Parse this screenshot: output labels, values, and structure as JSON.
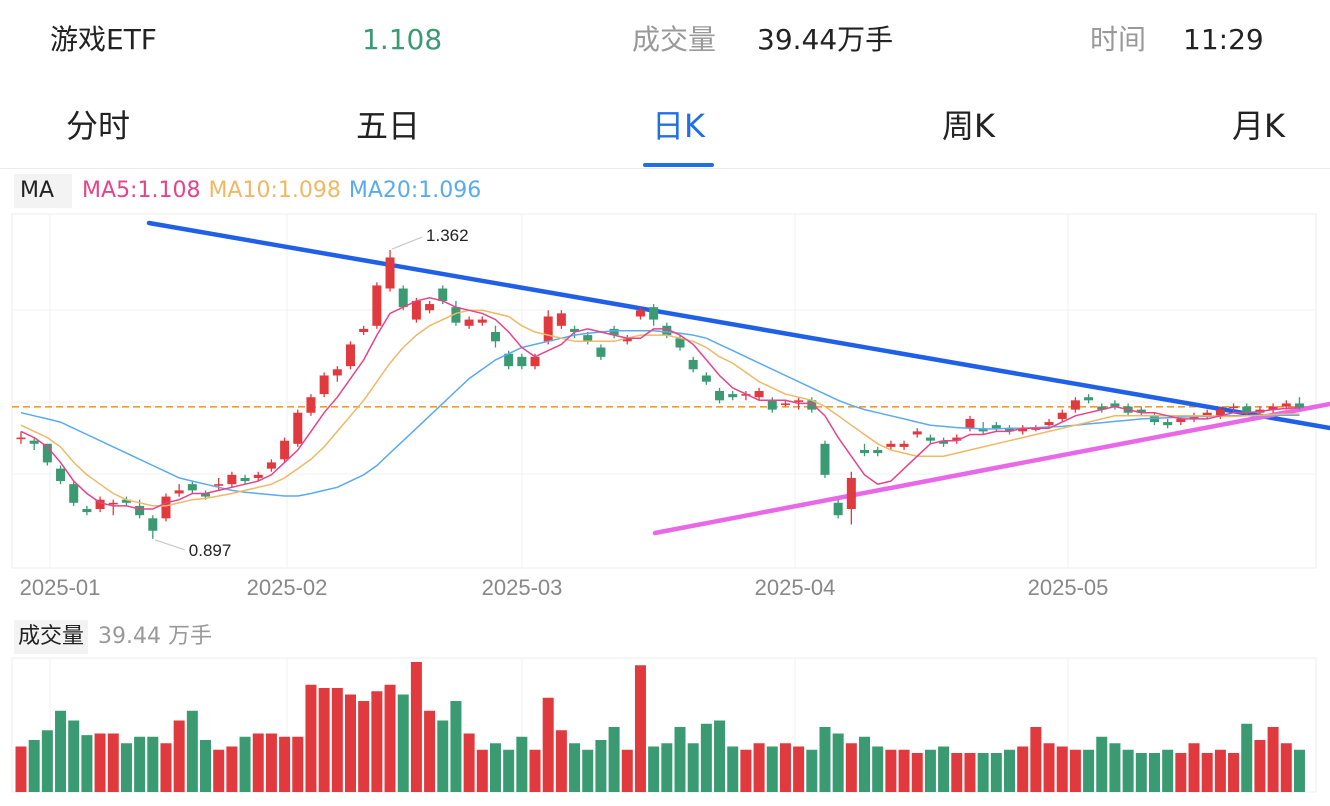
{
  "header": {
    "name": "游戏ETF",
    "price": "1.108",
    "volume_label": "成交量",
    "volume_value": "39.44万手",
    "time_label": "时间",
    "time_value": "11:29"
  },
  "tabs": [
    {
      "label": "分时",
      "active": false
    },
    {
      "label": "五日",
      "active": false
    },
    {
      "label": "日K",
      "active": true
    },
    {
      "label": "周K",
      "active": false
    },
    {
      "label": "月K",
      "active": false
    }
  ],
  "ma_legend": {
    "tag": "MA",
    "ma5": "MA5:1.108",
    "ma10": "MA10:1.098",
    "ma20": "MA20:1.096"
  },
  "volume_legend": {
    "tag": "成交量",
    "value": "39.44 万手"
  },
  "colors": {
    "up": "#e0393e",
    "down": "#3a9b73",
    "ma5": "#e5438a",
    "ma10": "#f0b865",
    "ma20": "#5aaaf0",
    "active_tab": "#1f6fe6",
    "resistance_line": "#2060e8",
    "support_line": "#e868e8",
    "last_price_line": "#f09a30"
  },
  "chart_data": {
    "type": "candlestick",
    "title": "",
    "x_ticks": [
      "2025-01",
      "2025-02",
      "2025-03",
      "2025-04",
      "2025-05"
    ],
    "ylim": [
      0.85,
      1.42
    ],
    "grid": true,
    "annotations": [
      {
        "text": "1.362",
        "kind": "max"
      },
      {
        "text": "0.897",
        "kind": "min"
      }
    ],
    "last_price": 1.108,
    "candles": [
      [
        1.06,
        1.06,
        1.07,
        1.05
      ],
      [
        1.055,
        1.05,
        1.06,
        1.04
      ],
      [
        1.05,
        1.02,
        1.05,
        1.015
      ],
      [
        1.01,
        0.99,
        1.015,
        0.985
      ],
      [
        0.985,
        0.955,
        0.99,
        0.95
      ],
      [
        0.945,
        0.94,
        0.95,
        0.935
      ],
      [
        0.945,
        0.96,
        0.965,
        0.94
      ],
      [
        0.955,
        0.955,
        0.96,
        0.935
      ],
      [
        0.96,
        0.955,
        0.965,
        0.95
      ],
      [
        0.95,
        0.935,
        0.96,
        0.93
      ],
      [
        0.93,
        0.91,
        0.935,
        0.897
      ],
      [
        0.93,
        0.965,
        0.97,
        0.925
      ],
      [
        0.97,
        0.975,
        0.985,
        0.965
      ],
      [
        0.985,
        0.975,
        0.99,
        0.97
      ],
      [
        0.97,
        0.965,
        0.975,
        0.96
      ],
      [
        0.985,
        0.985,
        0.995,
        0.975
      ],
      [
        0.985,
        1.0,
        1.005,
        0.98
      ],
      [
        0.995,
        0.99,
        1.0,
        0.985
      ],
      [
        0.995,
        1.0,
        1.005,
        0.99
      ],
      [
        1.01,
        1.02,
        1.025,
        1.005
      ],
      [
        1.025,
        1.055,
        1.06,
        1.02
      ],
      [
        1.05,
        1.1,
        1.105,
        1.045
      ],
      [
        1.1,
        1.125,
        1.13,
        1.095
      ],
      [
        1.13,
        1.16,
        1.165,
        1.125
      ],
      [
        1.16,
        1.17,
        1.175,
        1.15
      ],
      [
        1.175,
        1.21,
        1.215,
        1.17
      ],
      [
        1.23,
        1.235,
        1.24,
        1.225
      ],
      [
        1.24,
        1.305,
        1.31,
        1.235
      ],
      [
        1.3,
        1.35,
        1.362,
        1.295
      ],
      [
        1.3,
        1.27,
        1.305,
        1.265
      ],
      [
        1.25,
        1.28,
        1.285,
        1.245
      ],
      [
        1.265,
        1.275,
        1.28,
        1.26
      ],
      [
        1.3,
        1.28,
        1.305,
        1.275
      ],
      [
        1.27,
        1.245,
        1.28,
        1.24
      ],
      [
        1.24,
        1.25,
        1.255,
        1.235
      ],
      [
        1.245,
        1.25,
        1.255,
        1.24
      ],
      [
        1.23,
        1.215,
        1.24,
        1.205
      ],
      [
        1.195,
        1.175,
        1.2,
        1.17
      ],
      [
        1.19,
        1.175,
        1.195,
        1.17
      ],
      [
        1.175,
        1.19,
        1.195,
        1.17
      ],
      [
        1.215,
        1.255,
        1.265,
        1.21
      ],
      [
        1.24,
        1.26,
        1.265,
        1.235
      ],
      [
        1.235,
        1.23,
        1.24,
        1.22
      ],
      [
        1.225,
        1.215,
        1.23,
        1.21
      ],
      [
        1.205,
        1.19,
        1.21,
        1.185
      ],
      [
        1.235,
        1.225,
        1.24,
        1.22
      ],
      [
        1.215,
        1.22,
        1.225,
        1.21
      ],
      [
        1.255,
        1.265,
        1.27,
        1.25
      ],
      [
        1.27,
        1.25,
        1.275,
        1.24
      ],
      [
        1.24,
        1.225,
        1.245,
        1.22
      ],
      [
        1.22,
        1.205,
        1.225,
        1.2
      ],
      [
        1.185,
        1.17,
        1.19,
        1.165
      ],
      [
        1.16,
        1.15,
        1.165,
        1.145
      ],
      [
        1.135,
        1.12,
        1.14,
        1.115
      ],
      [
        1.13,
        1.125,
        1.135,
        1.12
      ],
      [
        1.13,
        1.13,
        1.135,
        1.12
      ],
      [
        1.125,
        1.135,
        1.14,
        1.12
      ],
      [
        1.12,
        1.105,
        1.125,
        1.1
      ],
      [
        1.115,
        1.115,
        1.12,
        1.11
      ],
      [
        1.12,
        1.12,
        1.125,
        1.105
      ],
      [
        1.12,
        1.105,
        1.125,
        1.1
      ],
      [
        1.05,
        1.0,
        1.055,
        0.995
      ],
      [
        0.955,
        0.935,
        0.96,
        0.93
      ],
      [
        0.945,
        0.995,
        1.005,
        0.92
      ],
      [
        1.04,
        1.035,
        1.05,
        1.03
      ],
      [
        1.04,
        1.035,
        1.045,
        1.03
      ],
      [
        1.045,
        1.05,
        1.055,
        1.04
      ],
      [
        1.045,
        1.05,
        1.055,
        1.04
      ],
      [
        1.065,
        1.07,
        1.075,
        1.06
      ],
      [
        1.06,
        1.055,
        1.065,
        1.05
      ],
      [
        1.055,
        1.05,
        1.06,
        1.045
      ],
      [
        1.055,
        1.06,
        1.065,
        1.05
      ],
      [
        1.075,
        1.09,
        1.095,
        1.07
      ],
      [
        1.075,
        1.07,
        1.085,
        1.065
      ],
      [
        1.08,
        1.075,
        1.085,
        1.07
      ],
      [
        1.075,
        1.07,
        1.08,
        1.065
      ],
      [
        1.07,
        1.075,
        1.08,
        1.065
      ],
      [
        1.075,
        1.075,
        1.08,
        1.07
      ],
      [
        1.08,
        1.085,
        1.09,
        1.075
      ],
      [
        1.09,
        1.1,
        1.105,
        1.085
      ],
      [
        1.105,
        1.12,
        1.125,
        1.1
      ],
      [
        1.125,
        1.12,
        1.13,
        1.115
      ],
      [
        1.11,
        1.105,
        1.115,
        1.1
      ],
      [
        1.115,
        1.11,
        1.12,
        1.105
      ],
      [
        1.11,
        1.1,
        1.115,
        1.095
      ],
      [
        1.105,
        1.1,
        1.11,
        1.095
      ],
      [
        1.095,
        1.085,
        1.1,
        1.08
      ],
      [
        1.085,
        1.08,
        1.09,
        1.075
      ],
      [
        1.085,
        1.09,
        1.095,
        1.08
      ],
      [
        1.09,
        1.095,
        1.1,
        1.085
      ],
      [
        1.095,
        1.1,
        1.105,
        1.09
      ],
      [
        1.095,
        1.105,
        1.11,
        1.09
      ],
      [
        1.11,
        1.11,
        1.115,
        1.1
      ],
      [
        1.11,
        1.1,
        1.115,
        1.095
      ],
      [
        1.1,
        1.105,
        1.11,
        1.095
      ],
      [
        1.105,
        1.11,
        1.115,
        1.1
      ],
      [
        1.11,
        1.115,
        1.12,
        1.105
      ],
      [
        1.115,
        1.108,
        1.125,
        1.105
      ]
    ],
    "ma5": [
      1.07,
      1.06,
      1.045,
      1.02,
      0.99,
      0.97,
      0.955,
      0.95,
      0.95,
      0.945,
      0.945,
      0.955,
      0.96,
      0.97,
      0.97,
      0.975,
      0.98,
      0.985,
      0.99,
      1.0,
      1.02,
      1.04,
      1.07,
      1.1,
      1.125,
      1.155,
      1.185,
      1.225,
      1.26,
      1.27,
      1.28,
      1.285,
      1.28,
      1.27,
      1.265,
      1.26,
      1.25,
      1.23,
      1.205,
      1.19,
      1.2,
      1.21,
      1.23,
      1.235,
      1.23,
      1.225,
      1.22,
      1.22,
      1.235,
      1.235,
      1.225,
      1.21,
      1.185,
      1.16,
      1.14,
      1.13,
      1.12,
      1.12,
      1.12,
      1.115,
      1.115,
      1.095,
      1.06,
      1.03,
      1.0,
      0.985,
      0.99,
      1.01,
      1.03,
      1.05,
      1.055,
      1.055,
      1.065,
      1.065,
      1.07,
      1.07,
      1.075,
      1.075,
      1.075,
      1.085,
      1.095,
      1.1,
      1.105,
      1.11,
      1.105,
      1.1,
      1.1,
      1.095,
      1.09,
      1.09,
      1.09,
      1.095,
      1.1,
      1.1,
      1.102,
      1.105,
      1.107,
      1.108
    ],
    "ma10": [
      1.08,
      1.07,
      1.06,
      1.045,
      1.02,
      1.0,
      0.985,
      0.97,
      0.96,
      0.955,
      0.95,
      0.95,
      0.955,
      0.96,
      0.962,
      0.966,
      0.97,
      0.975,
      0.98,
      0.985,
      0.995,
      1.01,
      1.025,
      1.045,
      1.07,
      1.095,
      1.12,
      1.15,
      1.18,
      1.205,
      1.225,
      1.24,
      1.25,
      1.26,
      1.265,
      1.265,
      1.26,
      1.255,
      1.24,
      1.23,
      1.225,
      1.22,
      1.215,
      1.215,
      1.215,
      1.215,
      1.22,
      1.225,
      1.225,
      1.225,
      1.22,
      1.215,
      1.205,
      1.19,
      1.18,
      1.165,
      1.15,
      1.14,
      1.13,
      1.125,
      1.12,
      1.11,
      1.095,
      1.08,
      1.065,
      1.05,
      1.04,
      1.035,
      1.03,
      1.03,
      1.03,
      1.035,
      1.04,
      1.045,
      1.05,
      1.055,
      1.06,
      1.065,
      1.07,
      1.075,
      1.08,
      1.085,
      1.09,
      1.095,
      1.095,
      1.095,
      1.095,
      1.095,
      1.095,
      1.095,
      1.095,
      1.094,
      1.094,
      1.095,
      1.096,
      1.097,
      1.098,
      1.098
    ],
    "ma20": [
      1.1,
      1.095,
      1.09,
      1.085,
      1.075,
      1.065,
      1.055,
      1.045,
      1.035,
      1.025,
      1.015,
      1.005,
      0.995,
      0.99,
      0.985,
      0.98,
      0.975,
      0.972,
      0.97,
      0.968,
      0.966,
      0.966,
      0.97,
      0.975,
      0.98,
      0.99,
      1.0,
      1.015,
      1.035,
      1.055,
      1.075,
      1.095,
      1.115,
      1.135,
      1.155,
      1.17,
      1.185,
      1.195,
      1.205,
      1.21,
      1.215,
      1.22,
      1.225,
      1.228,
      1.23,
      1.232,
      1.232,
      1.232,
      1.232,
      1.23,
      1.228,
      1.225,
      1.22,
      1.21,
      1.2,
      1.19,
      1.18,
      1.17,
      1.16,
      1.15,
      1.14,
      1.13,
      1.12,
      1.112,
      1.105,
      1.1,
      1.095,
      1.09,
      1.085,
      1.08,
      1.078,
      1.076,
      1.075,
      1.074,
      1.074,
      1.075,
      1.075,
      1.076,
      1.077,
      1.078,
      1.08,
      1.082,
      1.084,
      1.086,
      1.088,
      1.09,
      1.091,
      1.092,
      1.093,
      1.094,
      1.094,
      1.095,
      1.095,
      1.095,
      1.095,
      1.096,
      1.096,
      1.096
    ],
    "volumes": [
      28,
      32,
      38,
      50,
      44,
      35,
      36,
      36,
      30,
      34,
      34,
      30,
      44,
      50,
      32,
      26,
      28,
      34,
      36,
      36,
      34,
      34,
      66,
      64,
      64,
      60,
      56,
      62,
      66,
      60,
      80,
      50,
      44,
      56,
      36,
      26,
      30,
      26,
      34,
      26,
      58,
      38,
      30,
      26,
      32,
      40,
      26,
      78,
      28,
      30,
      40,
      30,
      42,
      44,
      28,
      26,
      30,
      28,
      30,
      28,
      26,
      40,
      36,
      30,
      34,
      28,
      26,
      26,
      24,
      26,
      28,
      24,
      24,
      24,
      24,
      26,
      28,
      40,
      30,
      28,
      26,
      26,
      34,
      30,
      26,
      24,
      24,
      26,
      24,
      30,
      24,
      26,
      24,
      42,
      32,
      40,
      30,
      26
    ]
  }
}
